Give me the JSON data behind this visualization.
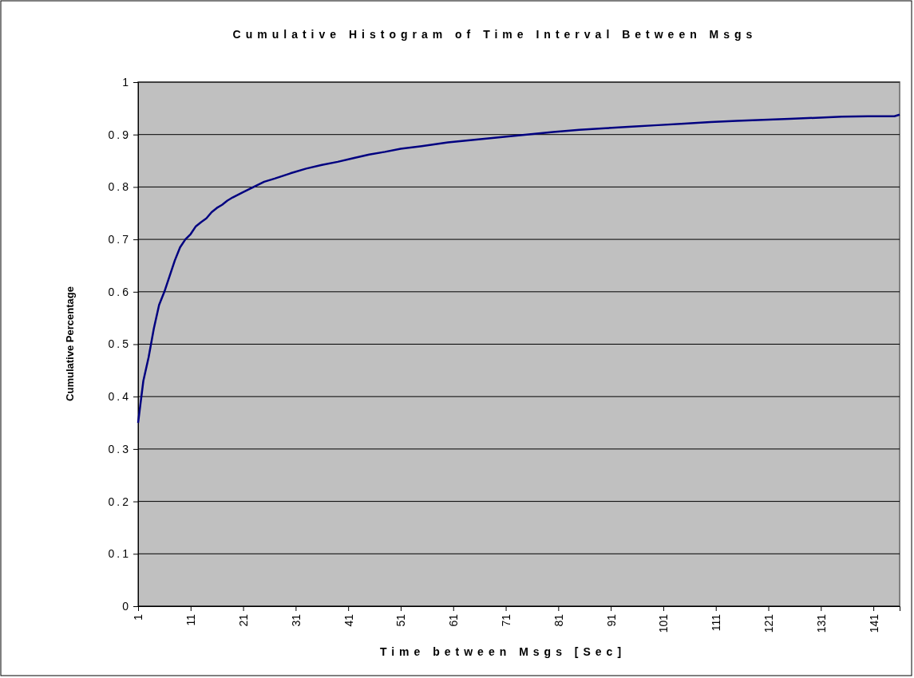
{
  "chart_data": {
    "type": "line",
    "title": "Cumulative Histogram of Time Interval Between Msgs",
    "xlabel": "Time between Msgs [Sec]",
    "ylabel": "Cumulative Percentage",
    "x": [
      1,
      2,
      3,
      4,
      5,
      6,
      7,
      8,
      9,
      10,
      11,
      12,
      13,
      14,
      15,
      16,
      17,
      18,
      19,
      21,
      23,
      25,
      27,
      30,
      33,
      36,
      39,
      42,
      45,
      48,
      51,
      55,
      60,
      65,
      70,
      75,
      80,
      85,
      90,
      95,
      100,
      105,
      110,
      115,
      120,
      125,
      130,
      135,
      140,
      145,
      146
    ],
    "series": [
      {
        "color": "#000080",
        "values": [
          0.35,
          0.43,
          0.475,
          0.53,
          0.575,
          0.6,
          0.63,
          0.66,
          0.685,
          0.7,
          0.71,
          0.725,
          0.733,
          0.74,
          0.752,
          0.76,
          0.766,
          0.774,
          0.78,
          0.79,
          0.8,
          0.81,
          0.816,
          0.826,
          0.835,
          0.842,
          0.848,
          0.855,
          0.862,
          0.867,
          0.873,
          0.878,
          0.885,
          0.89,
          0.895,
          0.9,
          0.905,
          0.909,
          0.912,
          0.915,
          0.918,
          0.921,
          0.924,
          0.926,
          0.928,
          0.93,
          0.932,
          0.934,
          0.935,
          0.935,
          0.938
        ]
      }
    ],
    "xlim": [
      1,
      146
    ],
    "xticks": [
      1,
      11,
      21,
      31,
      41,
      51,
      61,
      71,
      81,
      91,
      101,
      111,
      121,
      131,
      141
    ],
    "ylim": [
      0,
      1
    ],
    "yticks": [
      0,
      0.1,
      0.2,
      0.3,
      0.4,
      0.5,
      0.6,
      0.7,
      0.8,
      0.9,
      1
    ],
    "grid": "y",
    "marker": "none",
    "line_style": "solid"
  }
}
